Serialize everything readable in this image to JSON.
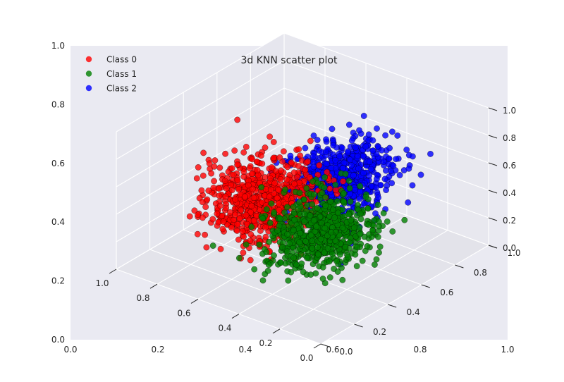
{
  "chart_data": {
    "type": "scatter",
    "projection": "3d",
    "title": "3d KNN scatter plot",
    "legend_placement": "top-left",
    "grid": true,
    "outer_axes": {
      "x_ticks": [
        "0.0",
        "0.2",
        "0.4",
        "0.6",
        "0.8",
        "1.0"
      ],
      "y_ticks": [
        "0.0",
        "0.2",
        "0.4",
        "0.6",
        "0.8",
        "1.0"
      ],
      "xlim": [
        0,
        1
      ],
      "ylim": [
        0,
        1
      ]
    },
    "axes3d": {
      "x_ticks": [
        "0.0",
        "0.2",
        "0.4",
        "0.6",
        "0.8",
        "1.0"
      ],
      "y_ticks": [
        "0.0",
        "0.2",
        "0.4",
        "0.6",
        "0.8",
        "1.0"
      ],
      "z_ticks": [
        "0.0",
        "0.2",
        "0.4",
        "0.6",
        "0.8",
        "1.0"
      ],
      "xlim": [
        0,
        1
      ],
      "ylim": [
        0,
        1
      ],
      "zlim": [
        0,
        1
      ]
    },
    "series": [
      {
        "name": "Class 0",
        "color": "#ff0000",
        "count": 700,
        "center": [
          0.48,
          0.25,
          0.62
        ],
        "spread": [
          0.11,
          0.12,
          0.12
        ]
      },
      {
        "name": "Class 1",
        "color": "#008000",
        "count": 700,
        "center": [
          0.42,
          0.5,
          0.22
        ],
        "spread": [
          0.1,
          0.11,
          0.1
        ]
      },
      {
        "name": "Class 2",
        "color": "#0000ff",
        "count": 650,
        "center": [
          0.24,
          0.42,
          0.78
        ],
        "spread": [
          0.09,
          0.12,
          0.1
        ]
      }
    ]
  }
}
